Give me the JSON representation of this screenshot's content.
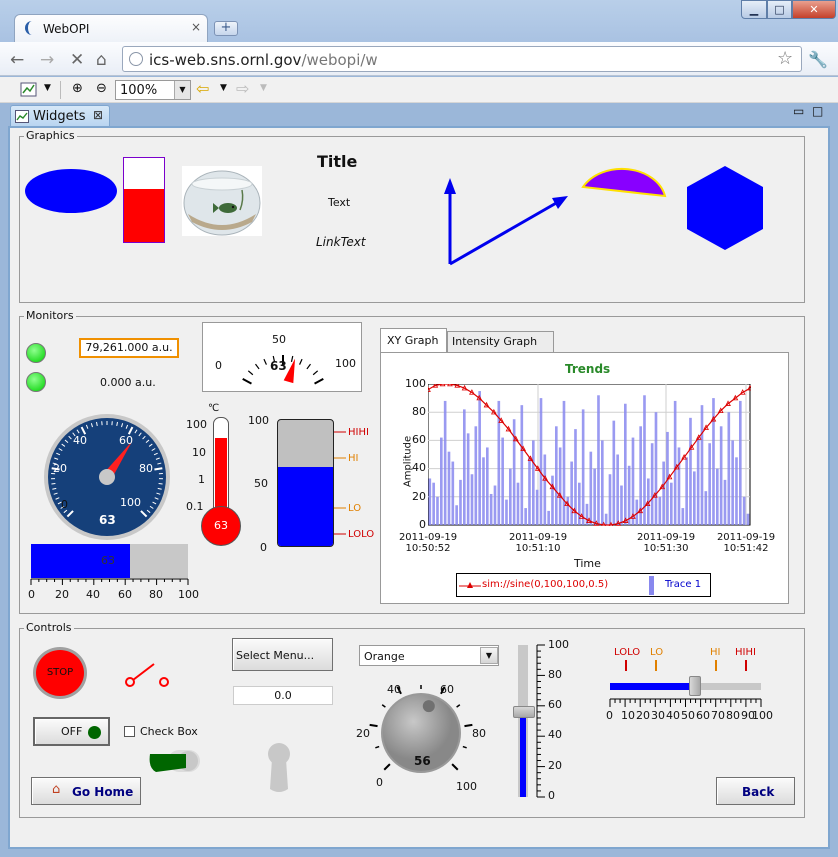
{
  "browser": {
    "tab_title": "WebOPI",
    "tab_close": "×",
    "new_tab": "+",
    "window_buttons": {
      "min": "▁",
      "max": "□",
      "close": "✕"
    },
    "url_host": "ics-web.sns.ornl.gov",
    "url_path": "/webopi/w"
  },
  "opi_toolbar": {
    "zoom_value": "100%"
  },
  "view_tab": {
    "label": "Widgets",
    "close": "⊠"
  },
  "graphics": {
    "group_label": "Graphics",
    "title": "Title",
    "text": "Text",
    "link_text": "LinkText",
    "tank_fill": 0.63,
    "colors": {
      "blue": "#0000ff",
      "red": "#ff0000",
      "purple": "#8800ff",
      "yellow": "#ffe000"
    }
  },
  "monitors": {
    "group_label": "Monitors",
    "text_update_1": "79,261.000 a.u.",
    "text_update_2": "0.000 a.u.",
    "led_color": "#00ee00",
    "meter": {
      "min": "0",
      "mid": "50",
      "max": "100",
      "value": "63",
      "value_num": 63
    },
    "gauge": {
      "ticks": [
        "0",
        "20",
        "40",
        "60",
        "80",
        "100"
      ],
      "value": "63",
      "value_num": 63
    },
    "thermometer": {
      "unit": "℃",
      "ticks": [
        "100",
        "10",
        "1",
        "0.1"
      ],
      "value": "63",
      "fill": 0.8
    },
    "tank": {
      "ticks": [
        "100",
        "50",
        "0"
      ],
      "levels": [
        "HIHI",
        "HI",
        "LO",
        "LOLO"
      ],
      "fill": 0.63
    },
    "progress_bar": {
      "value": "63",
      "fill": 0.63,
      "ticks": [
        "0",
        "20",
        "40",
        "60",
        "80",
        "100"
      ]
    },
    "graph": {
      "tabs": [
        "XY Graph",
        "Intensity Graph"
      ],
      "title": "Trends",
      "ylabel": "Amplitude",
      "xlabel": "Time",
      "y_ticks": [
        "100",
        "80",
        "60",
        "40",
        "20",
        "0"
      ],
      "x_ticks": [
        {
          "d": "2011-09-19",
          "t": "10:50:52"
        },
        {
          "d": "2011-09-19",
          "t": "10:51:10"
        },
        {
          "d": "2011-09-19",
          "t": "10:51:30"
        },
        {
          "d": "2011-09-19",
          "t": "10:51:42"
        }
      ],
      "legend_1": "sim://sine(0,100,100,0.5)",
      "legend_2": "Trace 1"
    }
  },
  "chart_data": {
    "type": "line",
    "title": "Trends",
    "xlabel": "Time",
    "ylabel": "Amplitude",
    "ylim": [
      0,
      100
    ],
    "x_tick_labels": [
      "2011-09-19 10:50:52",
      "2011-09-19 10:51:10",
      "2011-09-19 10:51:30",
      "2011-09-19 10:51:42"
    ],
    "series": [
      {
        "name": "sim://sine(0,100,100,0.5)",
        "kind": "line",
        "color": "#dd0000",
        "values": [
          96,
          99,
          100,
          100,
          99,
          97,
          94,
          90,
          85,
          80,
          74,
          68,
          61,
          54,
          47,
          40,
          33,
          27,
          21,
          15,
          10,
          6,
          3,
          1,
          0,
          0,
          1,
          3,
          6,
          10,
          15,
          21,
          27,
          34,
          41,
          48,
          55,
          62,
          69,
          75,
          81,
          86,
          90,
          94,
          97
        ]
      },
      {
        "name": "Trace 1",
        "kind": "bar",
        "color": "#8888ee",
        "values": [
          33,
          30,
          20,
          62,
          88,
          52,
          45,
          14,
          32,
          82,
          65,
          36,
          70,
          95,
          48,
          55,
          22,
          28,
          88,
          62,
          18,
          40,
          75,
          30,
          85,
          12,
          48,
          60,
          25,
          90,
          50,
          10,
          35,
          70,
          55,
          88,
          20,
          45,
          68,
          30,
          82,
          15,
          52,
          40,
          92,
          60,
          8,
          36,
          74,
          50,
          28,
          86,
          42,
          62,
          18,
          70,
          92,
          33,
          58,
          80,
          20,
          45,
          66,
          30,
          88,
          55,
          12,
          48,
          76,
          38,
          62,
          85,
          24,
          58,
          90,
          40,
          70,
          32,
          80,
          60,
          48,
          88,
          20,
          8
        ]
      }
    ]
  },
  "controls": {
    "group_label": "Controls",
    "stop_label": "STOP",
    "off_label": "OFF",
    "checkbox_label": "Check Box",
    "select_menu": "Select Menu...",
    "text_input": "0.0",
    "combo_value": "Orange",
    "knob": {
      "ticks": [
        "0",
        "20",
        "40",
        "60",
        "80",
        "100"
      ],
      "value": "56",
      "value_num": 56
    },
    "vslider": {
      "ticks": [
        "100",
        "80",
        "60",
        "40",
        "20",
        "0"
      ],
      "value": 0.56
    },
    "hslider": {
      "levels": [
        "LOLO",
        "LO",
        "HI",
        "HIHI"
      ],
      "ticks": [
        "0",
        "10",
        "20",
        "30",
        "40",
        "50",
        "60",
        "70",
        "80",
        "90",
        "100"
      ],
      "value": 0.56
    },
    "go_home": "Go Home",
    "back": "Back"
  }
}
